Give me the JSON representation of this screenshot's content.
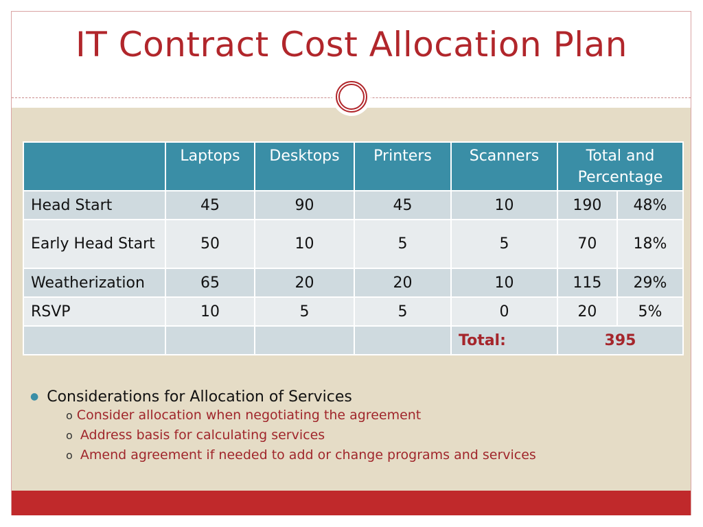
{
  "title": "IT Contract Cost Allocation Plan",
  "table": {
    "headers": [
      "",
      "Laptops",
      "Desktops",
      "Printers",
      "Scanners",
      "Total and Percentage"
    ],
    "rows": [
      {
        "label": "Head Start",
        "laptops": "45",
        "desktops": "90",
        "printers": "45",
        "scanners": "10",
        "total": "190",
        "pct": "48%"
      },
      {
        "label": "Early Head Start",
        "laptops": "50",
        "desktops": "10",
        "printers": "5",
        "scanners": "5",
        "total": "70",
        "pct": "18%"
      },
      {
        "label": "Weatherization",
        "laptops": "65",
        "desktops": "20",
        "printers": "20",
        "scanners": "10",
        "total": "115",
        "pct": "29%"
      },
      {
        "label": "RSVP",
        "laptops": "10",
        "desktops": "5",
        "printers": "5",
        "scanners": "0",
        "total": "20",
        "pct": "5%"
      }
    ],
    "total_label": "Total:",
    "total_value": "395"
  },
  "bullets": {
    "main": "Considerations for Allocation of Services",
    "subs": [
      "Consider allocation when negotiating the agreement",
      "Address basis for calculating services",
      "Amend agreement if needed to add or change programs and services"
    ]
  },
  "colors": {
    "accent_red": "#b1262b",
    "header_teal": "#3a8ea6",
    "background_beige": "#e5dcc6"
  }
}
